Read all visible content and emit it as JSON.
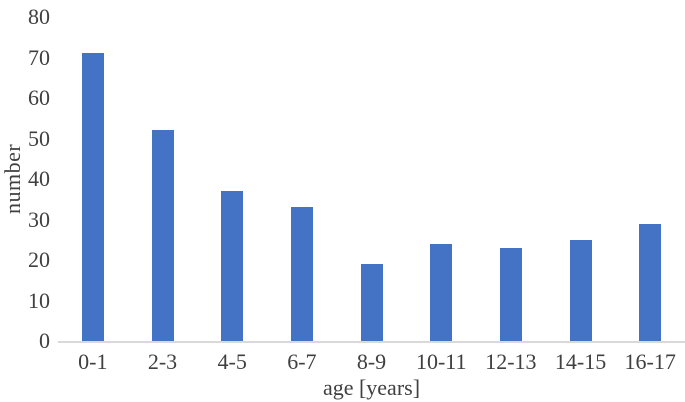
{
  "chart_data": {
    "type": "bar",
    "title": "",
    "categories": [
      "0-1",
      "2-3",
      "4-5",
      "6-7",
      "8-9",
      "10-11",
      "12-13",
      "14-15",
      "16-17"
    ],
    "values": [
      71,
      52,
      37,
      33,
      19,
      24,
      23,
      25,
      29
    ],
    "xlabel": "age [years]",
    "ylabel": "number",
    "ylim": [
      0,
      80
    ],
    "yticks": [
      0,
      10,
      20,
      30,
      40,
      50,
      60,
      70,
      80
    ],
    "grid": false,
    "legend": null,
    "colors": {
      "bar": "#4472C4",
      "axis_line": "#D9D9D9",
      "text": "#404040",
      "background": "#FFFFFF"
    }
  }
}
